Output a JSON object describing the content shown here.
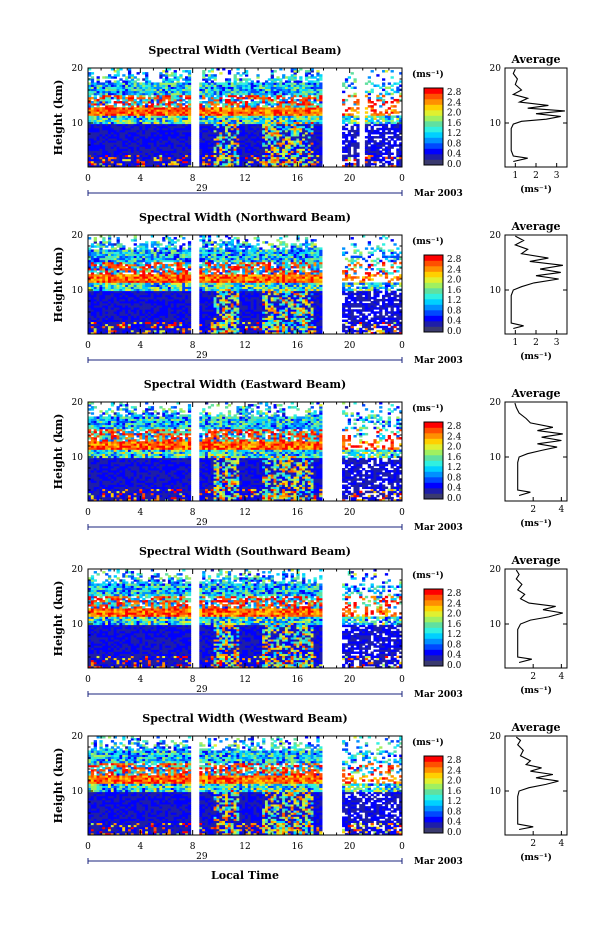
{
  "chart_data": {
    "type": "heatmap",
    "xlabel": "Local Time",
    "date_label": "Mar 2003",
    "day_label": "29",
    "x_ticks": [
      "0",
      "4",
      "8",
      "12",
      "16",
      "20",
      "0"
    ],
    "xlim": [
      0,
      24
    ],
    "ylabel": "Height (km)",
    "y_ticks": [
      "20",
      "10"
    ],
    "ylim": [
      2,
      20
    ],
    "colorbar": {
      "unit": "(ms⁻¹)",
      "ticks": [
        "2.8",
        "2.4",
        "2.0",
        "1.6",
        "1.2",
        "0.8",
        "0.4",
        "0.0"
      ],
      "range": [
        0.0,
        3.0
      ],
      "colors": [
        "#3a3a6e",
        "#1e1ea8",
        "#0000ff",
        "#0048ff",
        "#0090ff",
        "#00d0ff",
        "#30f0e0",
        "#60e0a0",
        "#a0f060",
        "#e0f030",
        "#ffd000",
        "#ff9000",
        "#ff5000",
        "#ff0000"
      ]
    },
    "average_title": "Average",
    "average_xlabel": "(ms⁻¹)",
    "panels": [
      {
        "title": "Spectral Width (Vertical Beam)",
        "average_xticks": [
          "1",
          "2",
          "3"
        ],
        "average_xlim": [
          0.5,
          3.5
        ],
        "average_profile": [
          [
            0.9,
            3
          ],
          [
            1.6,
            3.6
          ],
          [
            0.9,
            4
          ],
          [
            0.8,
            5
          ],
          [
            0.8,
            6
          ],
          [
            0.8,
            7
          ],
          [
            0.8,
            8
          ],
          [
            0.8,
            9
          ],
          [
            0.9,
            9.8
          ],
          [
            1.3,
            10.3
          ],
          [
            2.5,
            10.7
          ],
          [
            3.2,
            11.2
          ],
          [
            2.0,
            11.7
          ],
          [
            3.4,
            12.2
          ],
          [
            1.6,
            12.7
          ],
          [
            2.6,
            13.2
          ],
          [
            1.2,
            13.8
          ],
          [
            1.6,
            14.5
          ],
          [
            0.9,
            15.2
          ],
          [
            1.3,
            16
          ],
          [
            1.0,
            17
          ],
          [
            1.1,
            18
          ],
          [
            0.9,
            19
          ],
          [
            1.0,
            19.8
          ]
        ],
        "gaps_hours": [
          [
            7.9,
            8.4
          ],
          [
            18.1,
            19.4
          ],
          [
            20.8,
            21.0
          ]
        ]
      },
      {
        "title": "Spectral Width (Northward Beam)",
        "average_xticks": [
          "1",
          "2",
          "3"
        ],
        "average_xlim": [
          0.5,
          3.5
        ],
        "average_profile": [
          [
            0.9,
            3
          ],
          [
            1.4,
            3.5
          ],
          [
            0.8,
            4
          ],
          [
            0.8,
            5
          ],
          [
            0.8,
            6
          ],
          [
            0.8,
            7
          ],
          [
            0.8,
            8
          ],
          [
            0.8,
            9
          ],
          [
            0.9,
            10
          ],
          [
            1.3,
            10.6
          ],
          [
            1.9,
            11.3
          ],
          [
            3.1,
            12
          ],
          [
            2.0,
            12.6
          ],
          [
            3.2,
            13.2
          ],
          [
            2.2,
            13.8
          ],
          [
            3.3,
            14.5
          ],
          [
            1.7,
            15.2
          ],
          [
            2.6,
            15.8
          ],
          [
            1.3,
            16.6
          ],
          [
            1.6,
            17.4
          ],
          [
            1.0,
            18.2
          ],
          [
            1.4,
            19
          ],
          [
            1.0,
            19.8
          ]
        ],
        "gaps_hours": [
          [
            7.9,
            8.4
          ],
          [
            18.1,
            19.4
          ]
        ]
      },
      {
        "title": "Spectral Width (Eastward Beam)",
        "average_xticks": [
          "2",
          "4"
        ],
        "average_xlim": [
          0,
          4.4
        ],
        "average_profile": [
          [
            1.0,
            3
          ],
          [
            1.8,
            3.6
          ],
          [
            0.9,
            4
          ],
          [
            0.9,
            5
          ],
          [
            0.9,
            6
          ],
          [
            0.9,
            7
          ],
          [
            0.9,
            8
          ],
          [
            0.9,
            9
          ],
          [
            1.0,
            10
          ],
          [
            1.6,
            10.6
          ],
          [
            2.6,
            11.2
          ],
          [
            3.7,
            11.8
          ],
          [
            2.3,
            12.4
          ],
          [
            4.0,
            13
          ],
          [
            2.6,
            13.6
          ],
          [
            4.1,
            14.2
          ],
          [
            2.3,
            14.8
          ],
          [
            3.4,
            15.4
          ],
          [
            1.8,
            16.2
          ],
          [
            1.5,
            17
          ],
          [
            1.0,
            18
          ],
          [
            0.8,
            19
          ],
          [
            0.7,
            19.8
          ]
        ],
        "gaps_hours": [
          [
            7.9,
            8.4
          ],
          [
            18.1,
            19.4
          ]
        ]
      },
      {
        "title": "Spectral Width (Southward Beam)",
        "average_xticks": [
          "2",
          "4"
        ],
        "average_xlim": [
          0,
          4.4
        ],
        "average_profile": [
          [
            1.0,
            3
          ],
          [
            1.9,
            3.6
          ],
          [
            0.9,
            4
          ],
          [
            0.9,
            5
          ],
          [
            0.9,
            6
          ],
          [
            0.9,
            7
          ],
          [
            0.9,
            8
          ],
          [
            0.9,
            9
          ],
          [
            1.1,
            10
          ],
          [
            1.8,
            10.7
          ],
          [
            3.1,
            11.3
          ],
          [
            4.1,
            12
          ],
          [
            2.7,
            12.6
          ],
          [
            3.6,
            13.2
          ],
          [
            1.7,
            13.8
          ],
          [
            1.1,
            14.6
          ],
          [
            1.4,
            15.4
          ],
          [
            0.9,
            16.2
          ],
          [
            1.2,
            17.2
          ],
          [
            0.8,
            18.2
          ],
          [
            1.0,
            19
          ],
          [
            0.8,
            19.8
          ]
        ],
        "gaps_hours": [
          [
            7.9,
            8.4
          ],
          [
            18.1,
            19.4
          ]
        ]
      },
      {
        "title": "Spectral Width (Westward Beam)",
        "average_xticks": [
          "2",
          "4"
        ],
        "average_xlim": [
          0,
          4.4
        ],
        "average_profile": [
          [
            1.0,
            3
          ],
          [
            2.0,
            3.5
          ],
          [
            0.9,
            4
          ],
          [
            0.9,
            5
          ],
          [
            0.9,
            6
          ],
          [
            0.9,
            7
          ],
          [
            0.9,
            8
          ],
          [
            0.9,
            9
          ],
          [
            1.0,
            10
          ],
          [
            1.7,
            10.6
          ],
          [
            2.9,
            11.2
          ],
          [
            3.8,
            11.8
          ],
          [
            2.2,
            12.4
          ],
          [
            3.4,
            13
          ],
          [
            1.8,
            13.6
          ],
          [
            2.6,
            14.2
          ],
          [
            1.5,
            14.8
          ],
          [
            1.8,
            15.5
          ],
          [
            1.1,
            16.4
          ],
          [
            1.3,
            17.4
          ],
          [
            0.9,
            18.4
          ],
          [
            1.1,
            19.2
          ],
          [
            0.8,
            19.8
          ]
        ],
        "gaps_hours": [
          [
            7.9,
            8.4
          ],
          [
            18.1,
            19.4
          ]
        ]
      }
    ]
  }
}
